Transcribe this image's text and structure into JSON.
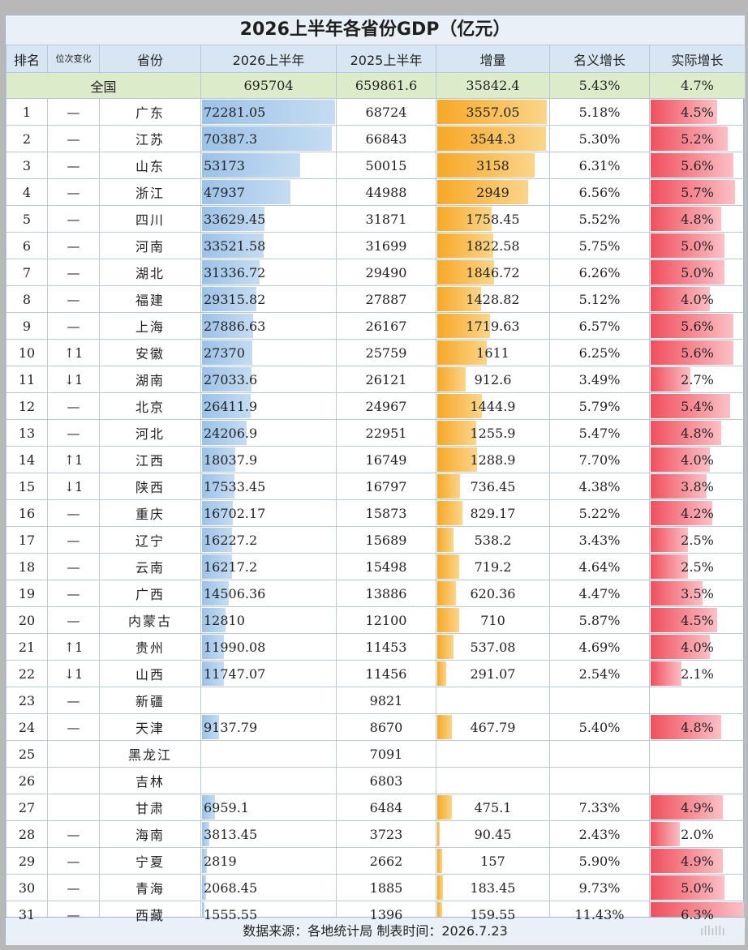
{
  "title": "2026上半年各省份GDP（亿元）",
  "headers": [
    "排名",
    "位次变化",
    "省份",
    "2026上半年",
    "2025上半年",
    "增量",
    "名义增长",
    "实际增长"
  ],
  "national": {
    "name": "全国",
    "gdp2026": "695704",
    "gdp2025": "659861.6",
    "increase": "35842.4",
    "nominal": "5.43%",
    "real": "4.7%"
  },
  "rows": [
    {
      "rank": "1",
      "change": "—",
      "province": "广东",
      "gdp2026": "72281.05",
      "gdp2025": "68724",
      "increase": "3557.05",
      "nominal": "5.18%",
      "real": "4.5%"
    },
    {
      "rank": "2",
      "change": "—",
      "province": "江苏",
      "gdp2026": "70387.3",
      "gdp2025": "66843",
      "increase": "3544.3",
      "nominal": "5.30%",
      "real": "5.2%"
    },
    {
      "rank": "3",
      "change": "—",
      "province": "山东",
      "gdp2026": "53173",
      "gdp2025": "50015",
      "increase": "3158",
      "nominal": "6.31%",
      "real": "5.6%"
    },
    {
      "rank": "4",
      "change": "—",
      "province": "浙江",
      "gdp2026": "47937",
      "gdp2025": "44988",
      "increase": "2949",
      "nominal": "6.56%",
      "real": "5.7%"
    },
    {
      "rank": "5",
      "change": "—",
      "province": "四川",
      "gdp2026": "33629.45",
      "gdp2025": "31871",
      "increase": "1758.45",
      "nominal": "5.52%",
      "real": "4.8%"
    },
    {
      "rank": "6",
      "change": "—",
      "province": "河南",
      "gdp2026": "33521.58",
      "gdp2025": "31699",
      "increase": "1822.58",
      "nominal": "5.75%",
      "real": "5.0%"
    },
    {
      "rank": "7",
      "change": "—",
      "province": "湖北",
      "gdp2026": "31336.72",
      "gdp2025": "29490",
      "increase": "1846.72",
      "nominal": "6.26%",
      "real": "5.0%"
    },
    {
      "rank": "8",
      "change": "—",
      "province": "福建",
      "gdp2026": "29315.82",
      "gdp2025": "27887",
      "increase": "1428.82",
      "nominal": "5.12%",
      "real": "4.0%"
    },
    {
      "rank": "9",
      "change": "—",
      "province": "上海",
      "gdp2026": "27886.63",
      "gdp2025": "26167",
      "increase": "1719.63",
      "nominal": "6.57%",
      "real": "5.6%"
    },
    {
      "rank": "10",
      "change": "↑1",
      "province": "安徽",
      "gdp2026": "27370",
      "gdp2025": "25759",
      "increase": "1611",
      "nominal": "6.25%",
      "real": "5.6%"
    },
    {
      "rank": "11",
      "change": "↓1",
      "province": "湖南",
      "gdp2026": "27033.6",
      "gdp2025": "26121",
      "increase": "912.6",
      "nominal": "3.49%",
      "real": "2.7%"
    },
    {
      "rank": "12",
      "change": "—",
      "province": "北京",
      "gdp2026": "26411.9",
      "gdp2025": "24967",
      "increase": "1444.9",
      "nominal": "5.79%",
      "real": "5.4%"
    },
    {
      "rank": "13",
      "change": "—",
      "province": "河北",
      "gdp2026": "24206.9",
      "gdp2025": "22951",
      "increase": "1255.9",
      "nominal": "5.47%",
      "real": "4.8%"
    },
    {
      "rank": "14",
      "change": "↑1",
      "province": "江西",
      "gdp2026": "18037.9",
      "gdp2025": "16749",
      "increase": "1288.9",
      "nominal": "7.70%",
      "real": "4.0%"
    },
    {
      "rank": "15",
      "change": "↓1",
      "province": "陕西",
      "gdp2026": "17533.45",
      "gdp2025": "16797",
      "increase": "736.45",
      "nominal": "4.38%",
      "real": "3.8%"
    },
    {
      "rank": "16",
      "change": "—",
      "province": "重庆",
      "gdp2026": "16702.17",
      "gdp2025": "15873",
      "increase": "829.17",
      "nominal": "5.22%",
      "real": "4.2%"
    },
    {
      "rank": "17",
      "change": "—",
      "province": "辽宁",
      "gdp2026": "16227.2",
      "gdp2025": "15689",
      "increase": "538.2",
      "nominal": "3.43%",
      "real": "2.5%"
    },
    {
      "rank": "18",
      "change": "—",
      "province": "云南",
      "gdp2026": "16217.2",
      "gdp2025": "15498",
      "increase": "719.2",
      "nominal": "4.64%",
      "real": "2.5%"
    },
    {
      "rank": "19",
      "change": "—",
      "province": "广西",
      "gdp2026": "14506.36",
      "gdp2025": "13886",
      "increase": "620.36",
      "nominal": "4.47%",
      "real": "3.5%"
    },
    {
      "rank": "20",
      "change": "—",
      "province": "内蒙古",
      "gdp2026": "12810",
      "gdp2025": "12100",
      "increase": "710",
      "nominal": "5.87%",
      "real": "4.5%"
    },
    {
      "rank": "21",
      "change": "↑1",
      "province": "贵州",
      "gdp2026": "11990.08",
      "gdp2025": "11453",
      "increase": "537.08",
      "nominal": "4.69%",
      "real": "4.0%"
    },
    {
      "rank": "22",
      "change": "↓1",
      "province": "山西",
      "gdp2026": "11747.07",
      "gdp2025": "11456",
      "increase": "291.07",
      "nominal": "2.54%",
      "real": "2.1%"
    },
    {
      "rank": "23",
      "change": "—",
      "province": "新疆",
      "gdp2026": "",
      "gdp2025": "9821",
      "increase": "",
      "nominal": "",
      "real": ""
    },
    {
      "rank": "24",
      "change": "—",
      "province": "天津",
      "gdp2026": "9137.79",
      "gdp2025": "8670",
      "increase": "467.79",
      "nominal": "5.40%",
      "real": "4.8%"
    },
    {
      "rank": "25",
      "change": "",
      "province": "黑龙江",
      "gdp2026": "",
      "gdp2025": "7091",
      "increase": "",
      "nominal": "",
      "real": ""
    },
    {
      "rank": "26",
      "change": "",
      "province": "吉林",
      "gdp2026": "",
      "gdp2025": "6803",
      "increase": "",
      "nominal": "",
      "real": ""
    },
    {
      "rank": "27",
      "change": "",
      "province": "甘肃",
      "gdp2026": "6959.1",
      "gdp2025": "6484",
      "increase": "475.1",
      "nominal": "7.33%",
      "real": "4.9%"
    },
    {
      "rank": "28",
      "change": "—",
      "province": "海南",
      "gdp2026": "3813.45",
      "gdp2025": "3723",
      "increase": "90.45",
      "nominal": "2.43%",
      "real": "2.0%"
    },
    {
      "rank": "29",
      "change": "—",
      "province": "宁夏",
      "gdp2026": "2819",
      "gdp2025": "2662",
      "increase": "157",
      "nominal": "5.90%",
      "real": "4.9%"
    },
    {
      "rank": "30",
      "change": "—",
      "province": "青海",
      "gdp2026": "2068.45",
      "gdp2025": "1885",
      "increase": "183.45",
      "nominal": "9.73%",
      "real": "5.0%"
    },
    {
      "rank": "31",
      "change": "—",
      "province": "西藏",
      "gdp2026": "1555.55",
      "gdp2025": "1396",
      "increase": "159.55",
      "nominal": "11.43%",
      "real": "6.3%"
    }
  ],
  "footer": "数据来源：各地统计局   制表时间：2026.7.23",
  "watermark": "ıllıllı",
  "colors": {
    "gdp_bar": "#9cc2e8",
    "increase_bar": "#f7a826",
    "real_bar": "#f04f5d",
    "national_row": "#dcebc9",
    "header": "#d8e6f3"
  }
}
